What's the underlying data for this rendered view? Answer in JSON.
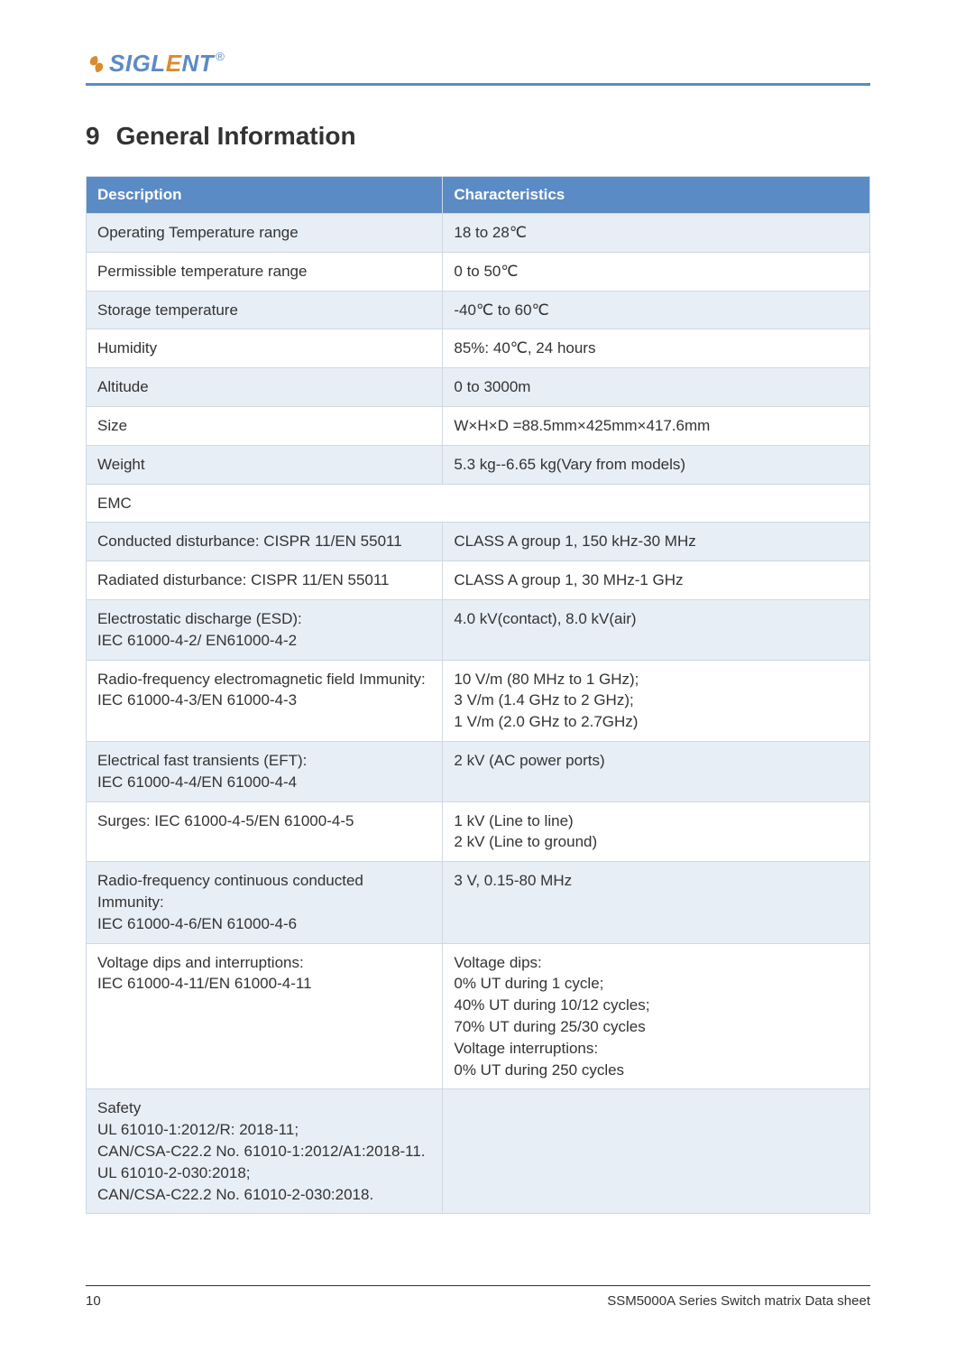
{
  "brand": {
    "prefix_s": "S",
    "middle": "IGL",
    "middle_e": "E",
    "suffix": "NT",
    "registered": "®",
    "swirl_color": "#d98b2e",
    "primary_color": "#5b8bc4",
    "accent_color": "#d98b2e"
  },
  "section": {
    "number": "9",
    "title": "General Information"
  },
  "table": {
    "header_bg": "#5b8bc4",
    "header_fg": "#ffffff",
    "alt_row_bg": "#e8eef6",
    "border_color": "#cfd8e3",
    "text_color": "#333333",
    "font_size": 17,
    "columns": [
      {
        "key": "description",
        "label": "Description",
        "width_pct": 45.5
      },
      {
        "key": "characteristics",
        "label": "Characteristics",
        "width_pct": 54.5
      }
    ],
    "rows": [
      {
        "alt": true,
        "description": "Operating Temperature range",
        "characteristics": "18 to 28℃"
      },
      {
        "alt": false,
        "description": "Permissible temperature range",
        "characteristics": "0 to 50℃"
      },
      {
        "alt": true,
        "description": "Storage temperature",
        "characteristics": "-40℃  to 60℃"
      },
      {
        "alt": false,
        "description": "Humidity",
        "characteristics": "85%: 40℃, 24 hours"
      },
      {
        "alt": true,
        "description": "Altitude",
        "characteristics": "0 to 3000m"
      },
      {
        "alt": false,
        "description": "Size",
        "characteristics": "W×H×D =88.5mm×425mm×417.6mm"
      },
      {
        "alt": true,
        "description": "Weight",
        "characteristics": "5.3 kg--6.65 kg(Vary from models)"
      },
      {
        "alt": false,
        "description": "EMC",
        "characteristics": "",
        "span_full": true
      },
      {
        "alt": true,
        "description": "Conducted disturbance: CISPR 11/EN 55011",
        "characteristics": "CLASS A group 1, 150 kHz-30 MHz"
      },
      {
        "alt": false,
        "description": "Radiated disturbance: CISPR 11/EN 55011",
        "characteristics": "CLASS A group 1, 30 MHz-1 GHz"
      },
      {
        "alt": true,
        "description": "Electrostatic discharge (ESD):\nIEC 61000-4-2/ EN61000-4-2",
        "characteristics": "4.0 kV(contact), 8.0 kV(air)"
      },
      {
        "alt": false,
        "description": "Radio-frequency electromagnetic field Immunity:\nIEC 61000-4-3/EN 61000-4-3",
        "characteristics": "10 V/m (80 MHz to 1 GHz);\n3 V/m (1.4 GHz to 2 GHz);\n1 V/m (2.0 GHz to 2.7GHz)"
      },
      {
        "alt": true,
        "description": "Electrical fast transients (EFT):\nIEC 61000-4-4/EN 61000-4-4",
        "characteristics": "2 kV (AC power ports)"
      },
      {
        "alt": false,
        "description": "Surges: IEC 61000-4-5/EN 61000-4-5",
        "characteristics": "1 kV (Line to line)\n2 kV (Line to ground)"
      },
      {
        "alt": true,
        "description": "Radio-frequency continuous conducted Immunity:\nIEC 61000-4-6/EN 61000-4-6",
        "characteristics": "3 V, 0.15-80 MHz"
      },
      {
        "alt": false,
        "description": "Voltage dips and interruptions:\nIEC 61000-4-11/EN 61000-4-11",
        "characteristics": "Voltage dips:\n0% UT during 1 cycle;\n40% UT during 10/12 cycles;\n70% UT during 25/30 cycles\nVoltage interruptions:\n0% UT during 250 cycles"
      },
      {
        "alt": true,
        "description": "Safety\nUL 61010-1:2012/R: 2018-11;\nCAN/CSA-C22.2 No. 61010-1:2012/A1:2018-11.\nUL 61010-2-030:2018;\nCAN/CSA-C22.2 No. 61010-2-030:2018.",
        "characteristics": ""
      }
    ]
  },
  "footer": {
    "page_number": "10",
    "doc_title": "SSM5000A Series Switch matrix Data sheet"
  }
}
